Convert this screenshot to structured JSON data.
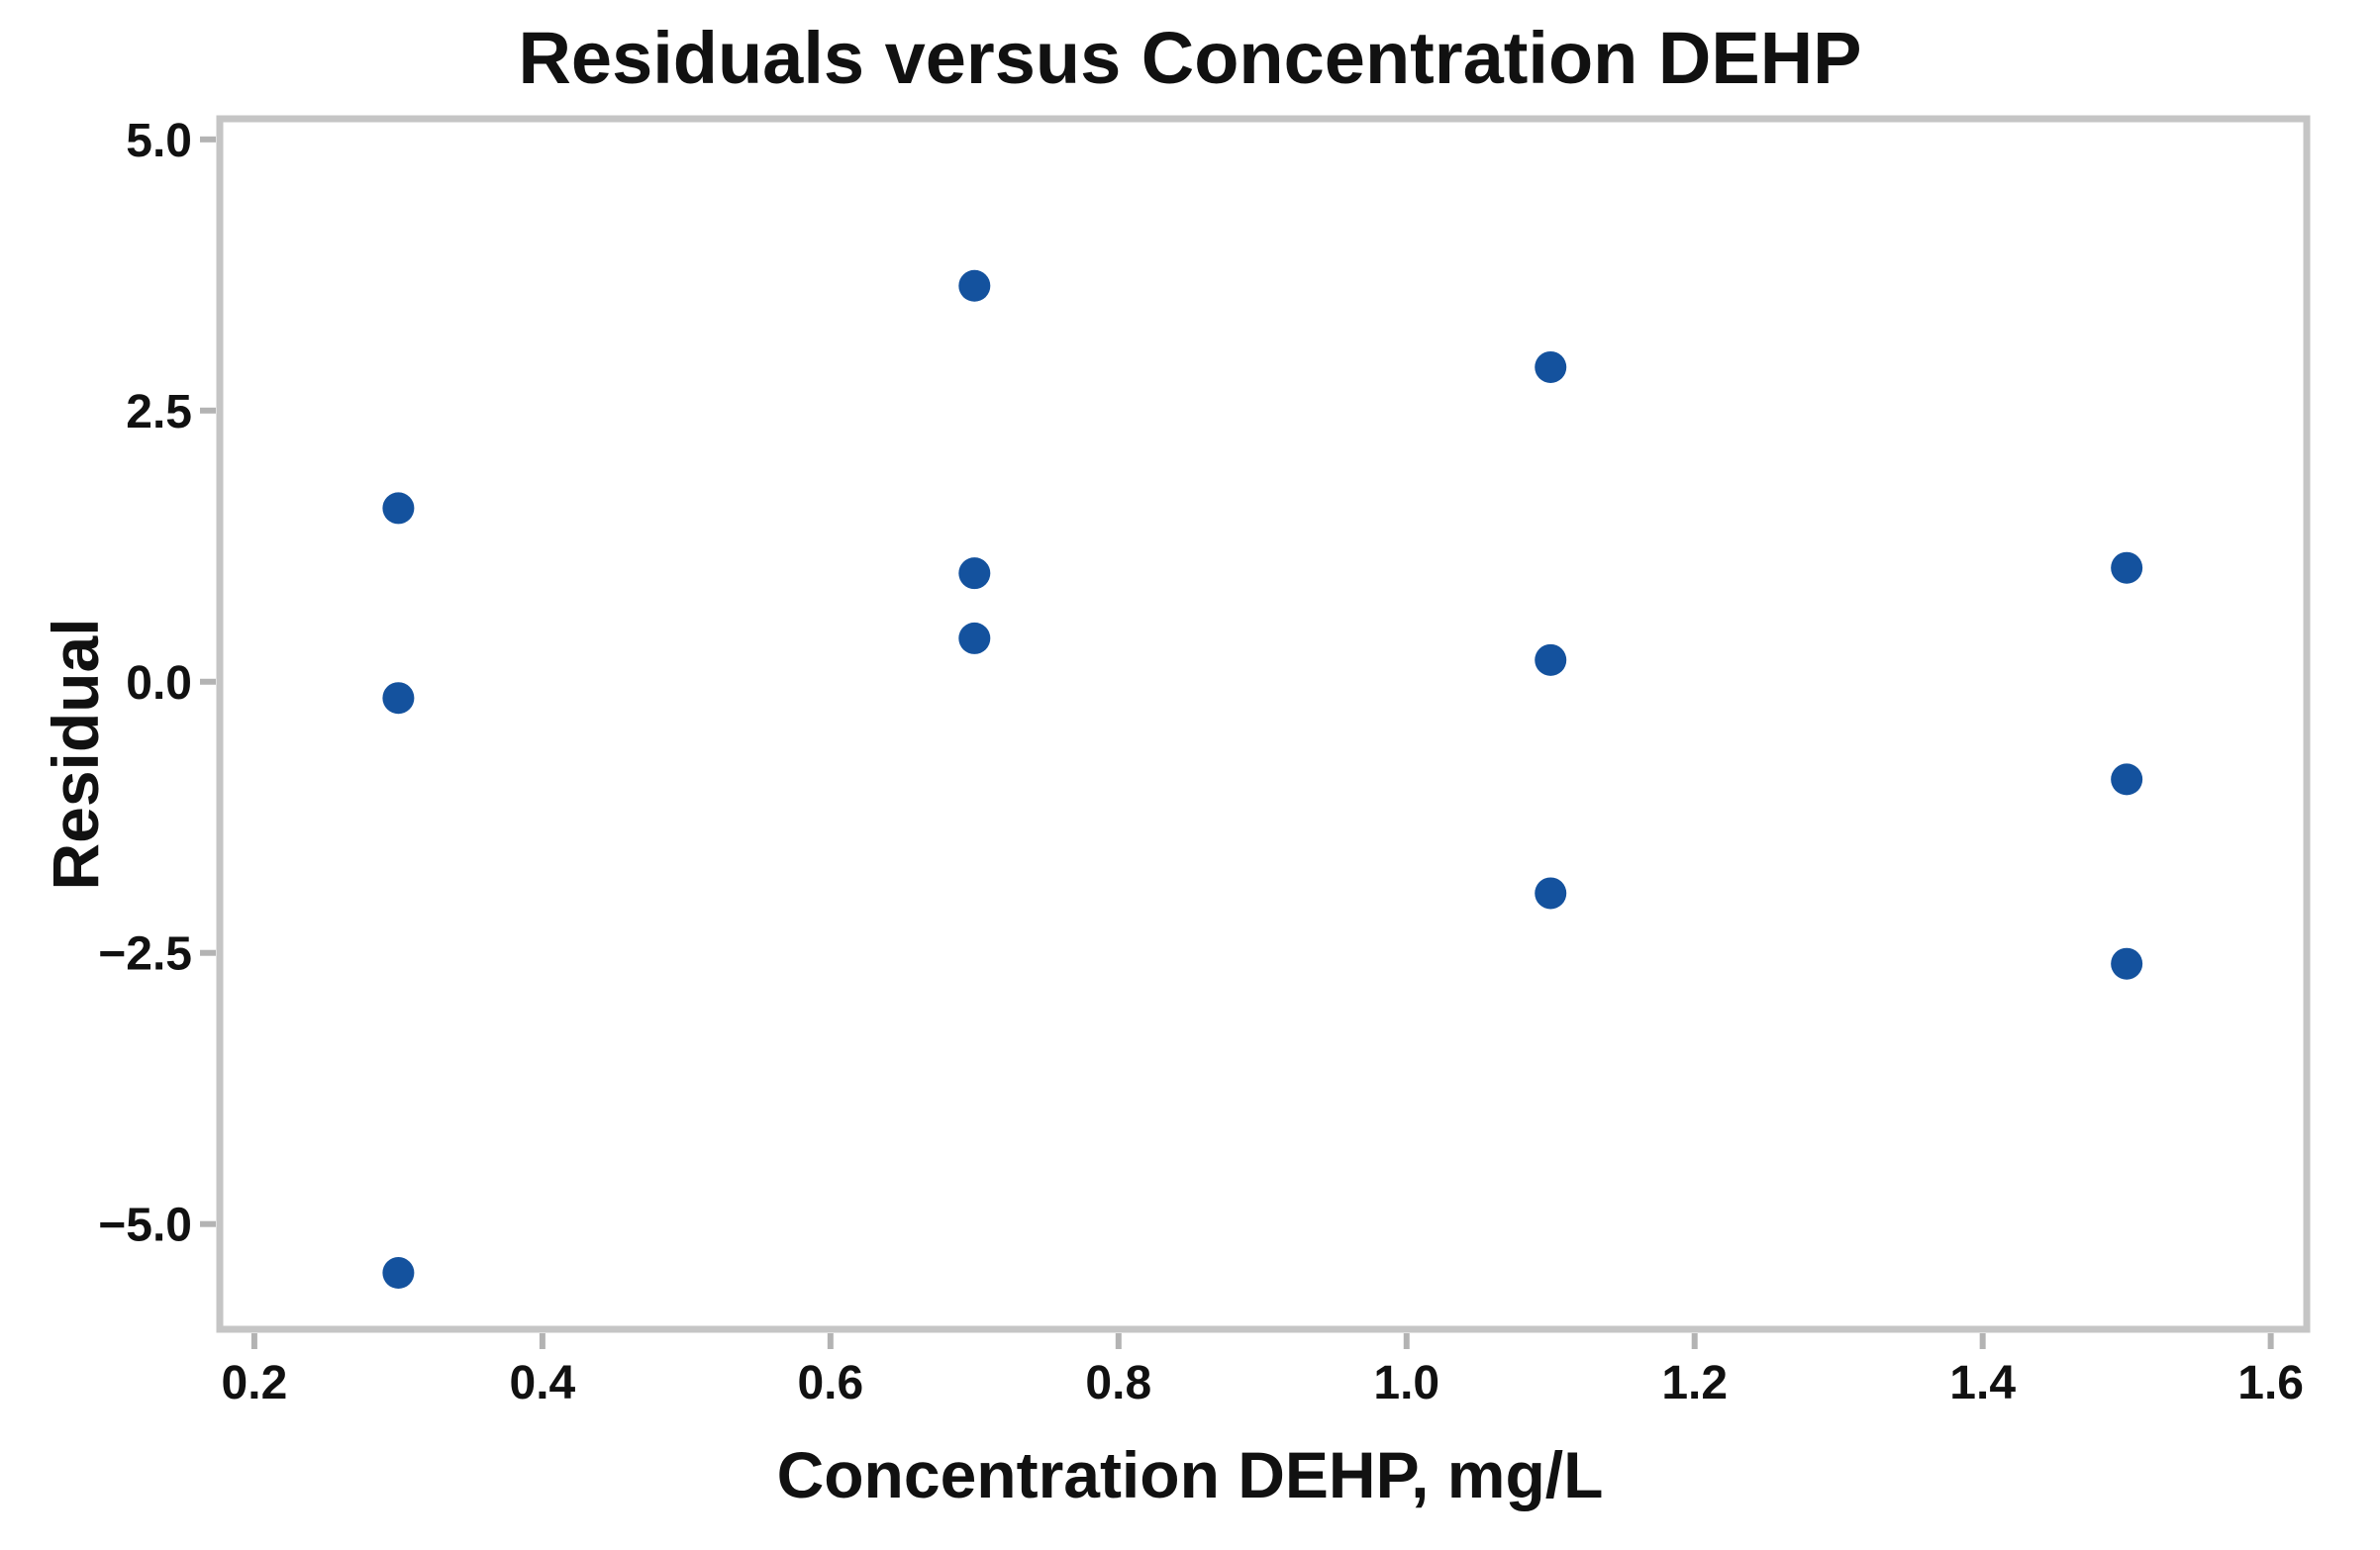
{
  "title": "Residuals versus Concentration DEHP",
  "chart_data": {
    "type": "scatter",
    "title": "Residuals versus Concentration DEHP",
    "xlabel": "Concentration DEHP, mg/L",
    "ylabel": "Residual",
    "xlim": [
      0.176,
      1.625
    ],
    "ylim": [
      -5.97,
      5.19
    ],
    "x_ticks": [
      0.2,
      0.4,
      0.6,
      0.8,
      1.0,
      1.2,
      1.4,
      1.6
    ],
    "x_tick_labels": [
      "0.2",
      "0.4",
      "0.6",
      "0.8",
      "1.0",
      "1.2",
      "1.4",
      "1.6"
    ],
    "y_ticks": [
      5.0,
      2.5,
      0.0,
      -2.5,
      -5.0
    ],
    "y_tick_labels": [
      "5.0",
      "2.5",
      "0.0",
      "−2.5",
      "−5.0"
    ],
    "grid": false,
    "legend": "none",
    "marker_color": "#14529e",
    "frame_color": "#c5c5c5",
    "tick_color": "#b3b3b3",
    "text_color": "#111111",
    "points": [
      {
        "x": 0.3,
        "y": 1.6
      },
      {
        "x": 0.3,
        "y": -0.15
      },
      {
        "x": 0.3,
        "y": -5.45
      },
      {
        "x": 0.7,
        "y": 3.65
      },
      {
        "x": 0.7,
        "y": 1.0
      },
      {
        "x": 0.7,
        "y": 0.4
      },
      {
        "x": 1.1,
        "y": 2.9
      },
      {
        "x": 1.1,
        "y": 0.2
      },
      {
        "x": 1.1,
        "y": -1.95
      },
      {
        "x": 1.5,
        "y": 1.05
      },
      {
        "x": 1.5,
        "y": -0.9
      },
      {
        "x": 1.5,
        "y": -2.6
      }
    ]
  }
}
